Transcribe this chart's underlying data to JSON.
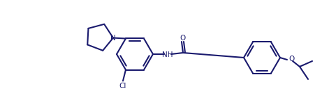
{
  "bg_color": "#ffffff",
  "line_color": "#1a1a6e",
  "line_width": 1.5,
  "figsize": [
    4.71,
    1.57
  ],
  "dpi": 100,
  "label_color": "#1a1a6e",
  "label_N": "N",
  "label_NH": "NH",
  "label_O_carbonyl": "O",
  "label_Cl": "Cl",
  "label_O_ether": "O"
}
